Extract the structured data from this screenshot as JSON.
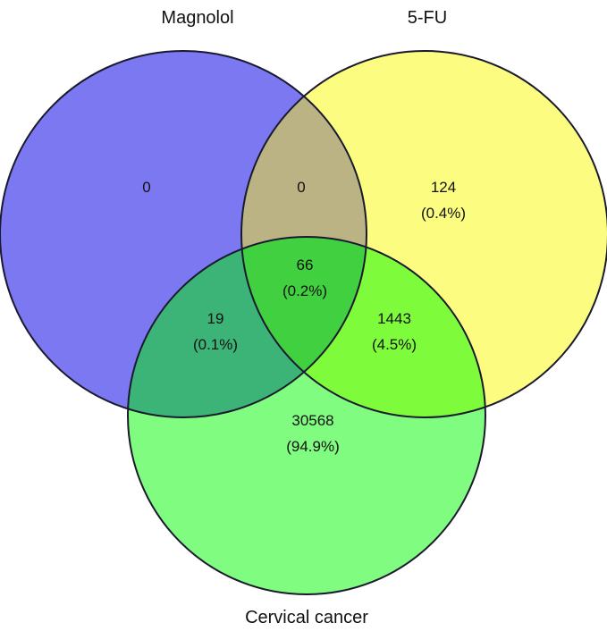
{
  "sets": {
    "a": {
      "name": "Magnolol",
      "color": "#7b78f2"
    },
    "b": {
      "name": "5-FU",
      "color": "#fcfc80"
    },
    "c": {
      "name": "Cervical cancer",
      "color": "#80fc80"
    }
  },
  "regions": {
    "a_only": {
      "count": "0",
      "percent": ""
    },
    "b_only": {
      "count": "124",
      "percent": "(0.4%)"
    },
    "c_only": {
      "count": "30568",
      "percent": "(94.9%)"
    },
    "ab": {
      "count": "0",
      "percent": ""
    },
    "ac": {
      "count": "19",
      "percent": "(0.1%)"
    },
    "bc": {
      "count": "1443",
      "percent": "(4.5%)"
    },
    "abc": {
      "count": "66",
      "percent": "(0.2%)"
    }
  },
  "overlap_colors": {
    "ab": "#bbb384",
    "ac": "#3cb478",
    "bc": "#7efc3c",
    "abc": "#40d040"
  }
}
